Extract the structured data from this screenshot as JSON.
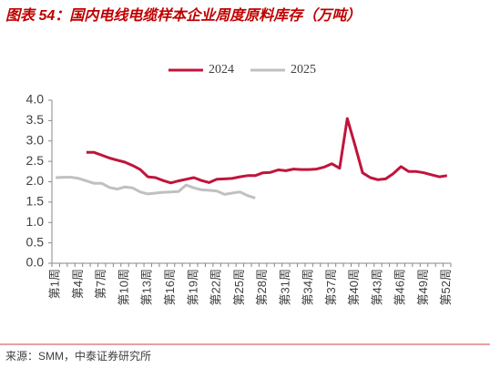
{
  "chart_data": {
    "type": "line",
    "title": "图表 54：国内电线电缆样本企业周度原料库存（万吨）",
    "source": "来源：SMM，中泰证券研究所",
    "categories": [
      "第1周",
      null,
      null,
      "第4周",
      null,
      null,
      "第7周",
      null,
      null,
      "第10周",
      null,
      null,
      "第13周",
      null,
      null,
      "第16周",
      null,
      null,
      "第19周",
      null,
      null,
      "第22周",
      null,
      null,
      "第25周",
      null,
      null,
      "第28周",
      null,
      null,
      "第31周",
      null,
      null,
      "第34周",
      null,
      null,
      "第37周",
      null,
      null,
      "第40周",
      null,
      null,
      "第43周",
      null,
      null,
      "第46周",
      null,
      null,
      "第49周",
      null,
      null,
      "第52周"
    ],
    "series": [
      {
        "name": "2024",
        "color": "#c0143c",
        "values": [
          null,
          null,
          null,
          null,
          2.72,
          2.72,
          2.65,
          2.58,
          2.53,
          2.48,
          2.4,
          2.3,
          2.12,
          2.1,
          2.03,
          1.97,
          2.02,
          2.06,
          2.1,
          2.03,
          1.98,
          2.06,
          2.07,
          2.08,
          2.12,
          2.15,
          2.15,
          2.22,
          2.23,
          2.29,
          2.27,
          2.31,
          2.3,
          2.3,
          2.31,
          2.36,
          2.44,
          2.33,
          3.55,
          2.9,
          2.22,
          2.1,
          2.05,
          2.07,
          2.2,
          2.37,
          2.25,
          2.25,
          2.22,
          2.17,
          2.12,
          2.15
        ]
      },
      {
        "name": "2025",
        "color": "#c0c0c0",
        "values": [
          2.1,
          2.11,
          2.11,
          2.08,
          2.02,
          1.96,
          1.96,
          1.86,
          1.82,
          1.87,
          1.85,
          1.75,
          1.7,
          1.72,
          1.74,
          1.75,
          1.76,
          1.92,
          1.85,
          1.8,
          1.79,
          1.77,
          1.69,
          1.72,
          1.75,
          1.66,
          1.6,
          null,
          null,
          null,
          null,
          null,
          null,
          null,
          null,
          null,
          null,
          null,
          null,
          null,
          null,
          null,
          null,
          null,
          null,
          null,
          null,
          null,
          null,
          null,
          null,
          null
        ]
      }
    ],
    "ylim": [
      0,
      4
    ],
    "yticks": [
      {
        "value": 0,
        "label": "0.0"
      },
      0.5,
      {
        "value": 1,
        "label": "1.0"
      },
      1.5,
      {
        "value": 2,
        "label": "2.0"
      },
      2.5,
      {
        "value": 3,
        "label": "3.0"
      },
      3.5,
      {
        "value": 4,
        "label": "4.0"
      }
    ],
    "legend": "top",
    "grid": false
  }
}
